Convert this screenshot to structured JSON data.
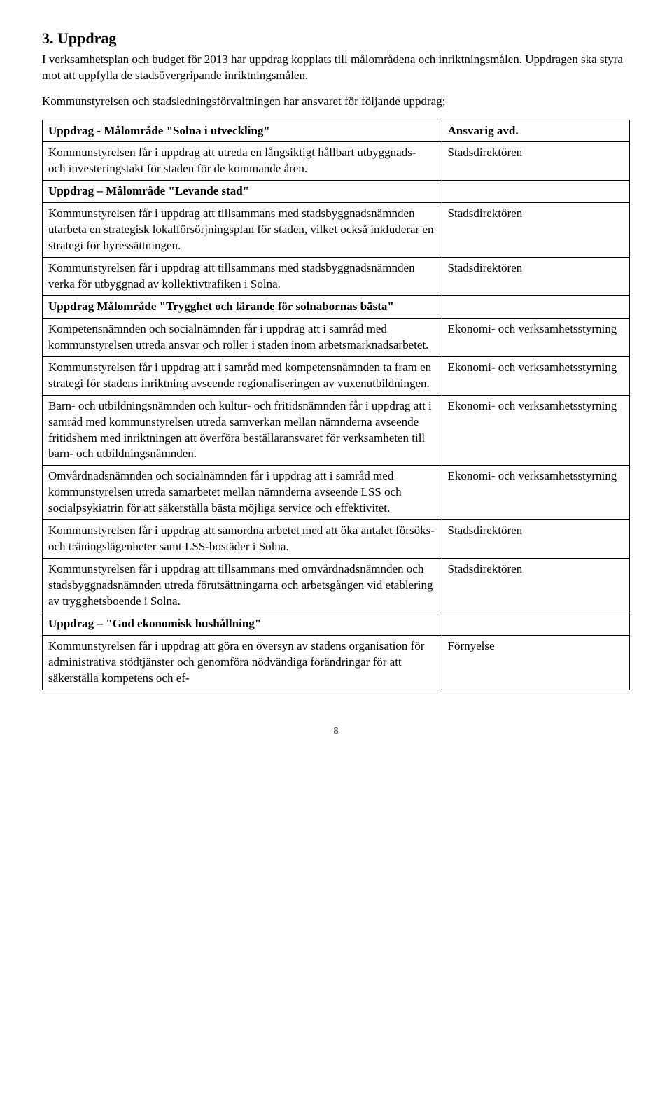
{
  "heading": "3. Uppdrag",
  "intro": "I verksamhetsplan och budget för 2013 har uppdrag kopplats till målområdena och inriktningsmålen. Uppdragen ska styra mot att uppfylla de stadsövergripande inriktningsmålen.",
  "lead": "Kommunstyrelsen och stadsledningsförvaltningen har ansvaret för följande uppdrag;",
  "page": "8",
  "rows": [
    {
      "left": "Uppdrag - Målområde \"Solna i utveckling\"",
      "right": "Ansvarig avd.",
      "lbold": true,
      "rbold": true
    },
    {
      "left": "Kommunstyrelsen får i uppdrag att utreda en långsiktigt hållbart utbyggnads- och investeringstakt för staden för de kommande åren.",
      "right": "Stadsdirektören"
    },
    {
      "left": "Uppdrag – Målområde \"Levande stad\"",
      "right": "",
      "lbold": true
    },
    {
      "left": "Kommunstyrelsen får i uppdrag att tillsammans med stadsbyggnadsnämnden utarbeta en strategisk lokalförsörjningsplan för staden, vilket också inkluderar en strategi för hyressättningen.",
      "right": "Stadsdirektören"
    },
    {
      "left": "Kommunstyrelsen får i uppdrag att tillsammans med stadsbyggnadsnämnden verka för utbyggnad av kollektivtrafiken i Solna.",
      "right": "Stadsdirektören"
    },
    {
      "left": "Uppdrag Målområde \"Trygghet och lärande för solnabornas bästa\"",
      "right": "",
      "lbold": true
    },
    {
      "left": "Kompetensnämnden och socialnämnden får i uppdrag att i samråd med kommunstyrelsen utreda ansvar och roller i staden inom arbetsmarknadsarbetet.",
      "right": "Ekonomi- och verksamhetsstyrning"
    },
    {
      "left": "Kommunstyrelsen får i uppdrag att i samråd med kompetensnämnden ta fram en strategi för stadens inriktning avseende regionaliseringen av vuxenutbildningen.",
      "right": "Ekonomi- och verksamhetsstyrning"
    },
    {
      "left": "Barn- och utbildningsnämnden och kultur- och fritidsnämnden får i uppdrag att i samråd med kommunstyrelsen utreda samverkan mellan nämnderna avseende fritidshem med inriktningen att överföra beställaransvaret för verksamheten till barn- och utbildningsnämnden.",
      "right": "Ekonomi- och verksamhetsstyrning"
    },
    {
      "left": "Omvårdnadsnämnden och socialnämnden får i uppdrag att i samråd med kommunstyrelsen utreda samarbetet mellan nämnderna avseende LSS och socialpsykiatrin för att säkerställa bästa möjliga service och effektivitet.",
      "right": "Ekonomi- och verksamhetsstyrning"
    },
    {
      "left": "Kommunstyrelsen får i uppdrag att samordna arbetet med att öka antalet försöks- och träningslägenheter samt LSS-bostäder i Solna.",
      "right": "Stadsdirektören"
    },
    {
      "left": "Kommunstyrelsen får i uppdrag att tillsammans med omvårdnadsnämnden och stadsbyggnadsnämnden utreda förutsättningarna och arbetsgången vid etablering av trygghetsboende i Solna.",
      "right": "Stadsdirektören"
    },
    {
      "left": "Uppdrag – \"God ekonomisk hushållning\"",
      "right": "",
      "lbold": true
    },
    {
      "left": "Kommunstyrelsen får i uppdrag att göra en översyn av stadens organisation för administrativa stödtjänster och genomföra nödvändiga förändringar för att säkerställa kompetens och ef-",
      "right": "Förnyelse"
    }
  ]
}
